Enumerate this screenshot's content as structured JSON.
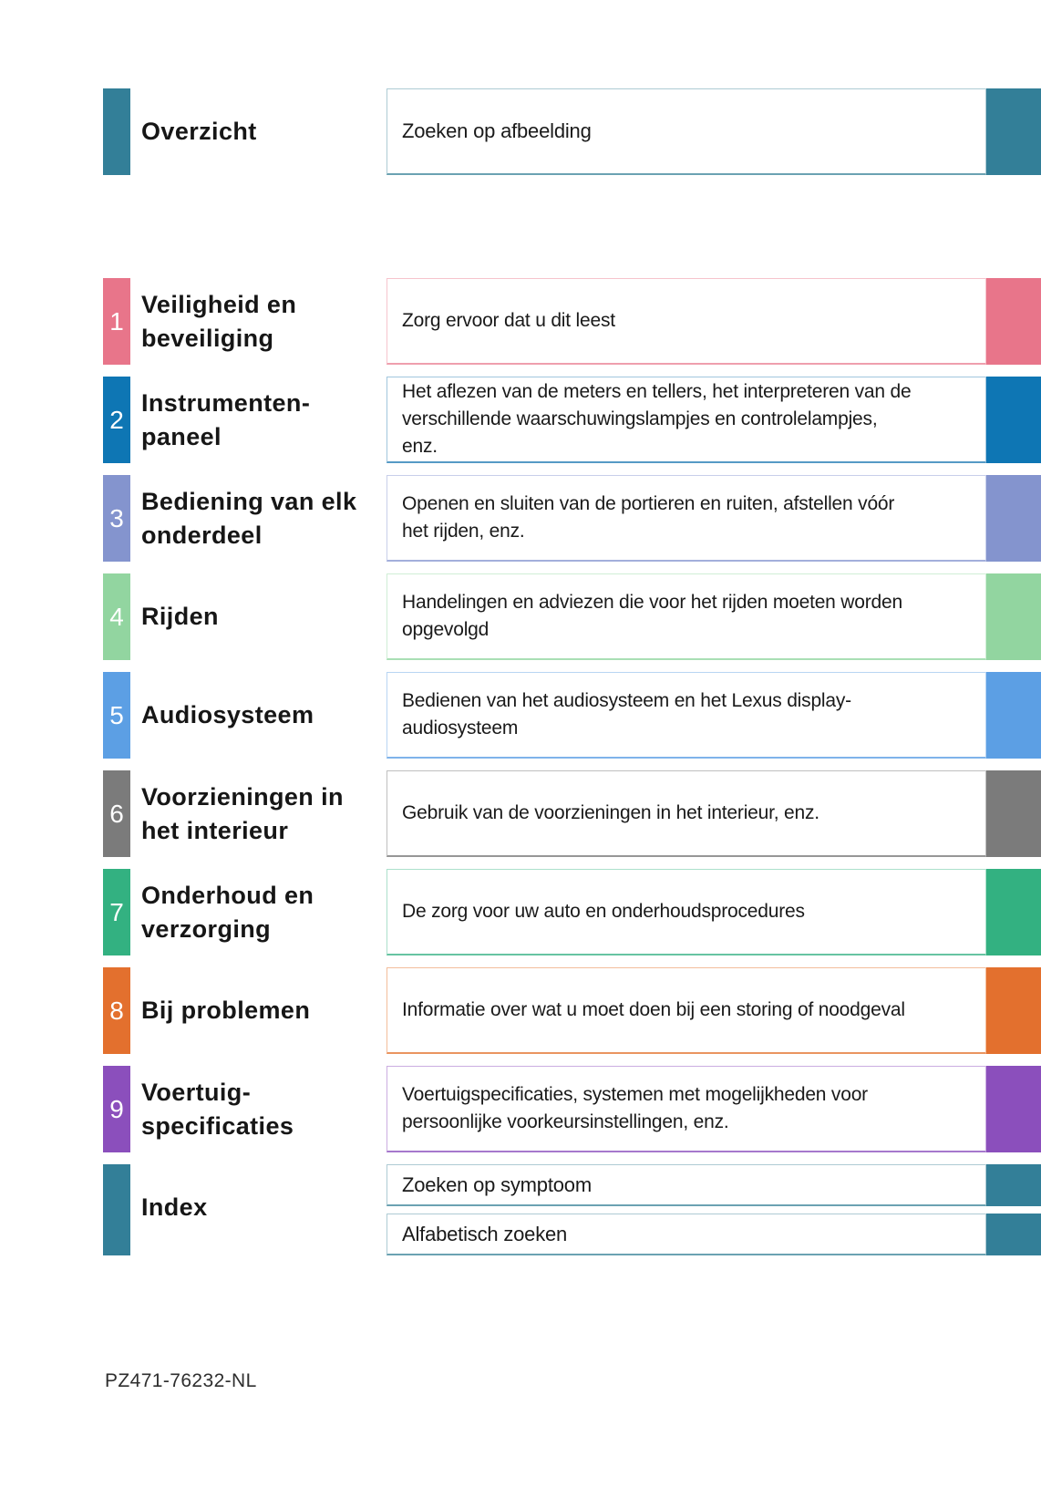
{
  "page": {
    "background": "#ffffff",
    "footer_code": "PZ471-76232-NL"
  },
  "overview": {
    "title": "Overzicht",
    "item": "Zoeken op afbeelding",
    "color": "#337f98",
    "border": "#aecbd4",
    "rule": "#6ba2b2"
  },
  "sections": [
    {
      "number": "1",
      "title": "Veiligheid en\nbeveiliging",
      "description": "Zorg ervoor dat u dit leest",
      "color": "#e8758a",
      "border": "#f6c4cd",
      "rule": "#ef9fae"
    },
    {
      "number": "2",
      "title": "Instrumenten-\npaneel",
      "description": "Het aflezen van de meters en tellers, het interpreteren van de\nverschillende waarschuwingslampjes en controlelampjes,\nenz.",
      "color": "#0e76b4",
      "border": "#a2c6dd",
      "rule": "#569ac6"
    },
    {
      "number": "3",
      "title": "Bediening van elk\nonderdeel",
      "description": "Openen en sluiten van de portieren en ruiten, afstellen vóór\nhet rijden, enz.",
      "color": "#8494ce",
      "border": "#c8cfea",
      "rule": "#a3afdb"
    },
    {
      "number": "4",
      "title": "Rijden",
      "description": "Handelingen en adviezen die voor het rijden moeten worden\nopgevolgd",
      "color": "#92d5a0",
      "border": "#d0eed6",
      "rule": "#a9dfb5"
    },
    {
      "number": "5",
      "title": "Audiosysteem",
      "description": "Bedienen van het audiosysteem en het Lexus display-\naudiosysteem",
      "color": "#5c9fe4",
      "border": "#b8d5f3",
      "rule": "#7fb3ea"
    },
    {
      "number": "6",
      "title": "Voorzieningen in\nhet interieur",
      "description": "Gebruik van de voorzieningen in het interieur, enz.",
      "color": "#7b7b7b",
      "border": "#bfbfbf",
      "rule": "#979797"
    },
    {
      "number": "7",
      "title": "Onderhoud en\nverzorging",
      "description": "De zorg voor uw auto en onderhoudsprocedures",
      "color": "#33b181",
      "border": "#ace0cb",
      "rule": "#67c4a2"
    },
    {
      "number": "8",
      "title": "Bij problemen",
      "description": "Informatie over wat u moet doen bij een storing of noodgeval",
      "color": "#e3702e",
      "border": "#f3bd9b",
      "rule": "#ea9560"
    },
    {
      "number": "9",
      "title": "Voertuig-\nspecificaties",
      "description": "Voertuigspecificaties, systemen met mogelijkheden voor\npersoonlijke voorkeursinstellingen, enz.",
      "color": "#8b4fbc",
      "border": "#cbade1",
      "rule": "#a678cd"
    }
  ],
  "index": {
    "title": "Index",
    "color": "#337f98",
    "border": "#aecbd4",
    "rule": "#6ba2b2",
    "items": [
      {
        "label": "Zoeken op symptoom"
      },
      {
        "label": "Alfabetisch zoeken"
      }
    ]
  }
}
